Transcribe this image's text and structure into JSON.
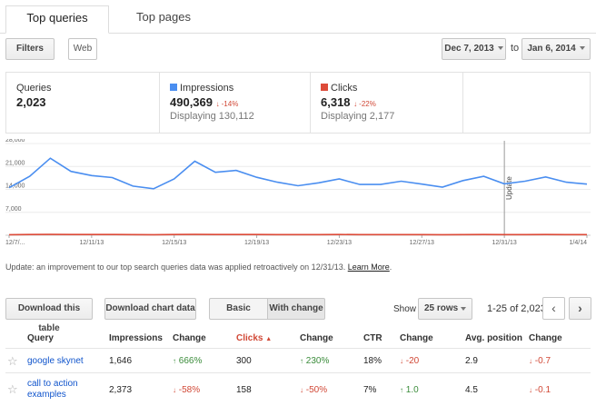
{
  "tabs": [
    {
      "label": "Top queries"
    },
    {
      "label": "Top pages"
    }
  ],
  "toolbar": {
    "filters_label": "Filters",
    "web_label": "Web",
    "date_from": "Dec 7, 2013",
    "date_to_sep": "to",
    "date_to": "Jan 6, 2014"
  },
  "metrics": {
    "queries": {
      "label": "Queries",
      "value": "2,023"
    },
    "impressions": {
      "label": "Impressions",
      "value": "490,369",
      "change": "-14%",
      "sub": "Displaying 130,112",
      "color": "#4a8ef0"
    },
    "clicks": {
      "label": "Clicks",
      "value": "6,318",
      "change": "-22%",
      "sub": "Displaying 2,177",
      "color": "#dd4b39"
    }
  },
  "chart_data": {
    "type": "line",
    "x_tick_labels": [
      "12/7/...",
      "12/11/13",
      "12/15/13",
      "12/19/13",
      "12/23/13",
      "12/27/13",
      "12/31/13",
      "1/4/14"
    ],
    "y_tick_labels": [
      "28,000",
      "21,000",
      "14,000",
      "7,000"
    ],
    "ylim": [
      0,
      28000
    ],
    "annotation": "Update",
    "series": [
      {
        "name": "Impressions",
        "color": "#4a8ef0",
        "values": [
          14500,
          18000,
          23500,
          19500,
          18200,
          17600,
          15000,
          14200,
          17200,
          22600,
          19200,
          19800,
          17700,
          16200,
          15100,
          16000,
          17200,
          15500,
          15500,
          16500,
          15600,
          14700,
          16700,
          18000,
          15700,
          16500,
          17800,
          16200,
          15600
        ]
      },
      {
        "name": "Clicks",
        "color": "#dd4b39",
        "values": [
          180,
          220,
          260,
          230,
          220,
          210,
          190,
          180,
          210,
          250,
          220,
          230,
          210,
          200,
          190,
          200,
          210,
          190,
          190,
          200,
          190,
          180,
          200,
          210,
          190,
          200,
          210,
          200,
          190
        ]
      }
    ]
  },
  "update_note": {
    "text": "Update: an improvement to our top search queries data was applied retroactively on 12/31/13. ",
    "link": "Learn More",
    "end": "."
  },
  "table_toolbar": {
    "download_table": "Download this table",
    "download_chart": "Download chart data",
    "basic": "Basic",
    "with_change": "With change",
    "show": "Show",
    "rows": "25 rows",
    "range": "1-25 of 2,023"
  },
  "table": {
    "headers": [
      "Query",
      "Impressions",
      "Change",
      "Clicks",
      "Change",
      "CTR",
      "Change",
      "Avg. position",
      "Change"
    ],
    "rows": [
      {
        "query": "google skynet",
        "impressions": "1,646",
        "imp_change": "666%",
        "clicks": "300",
        "clk_change": "230%",
        "ctr": "18%",
        "ctr_change": "-20",
        "avg_pos": "2.9",
        "pos_change": "-0.7"
      },
      {
        "query": "call to action examples",
        "query_l1": "call to action",
        "query_l2": "examples",
        "impressions": "2,373",
        "imp_change": "-58%",
        "clicks": "158",
        "clk_change": "-50%",
        "ctr": "7%",
        "ctr_change": "1.0",
        "avg_pos": "4.5",
        "pos_change": "-0.1"
      }
    ]
  }
}
